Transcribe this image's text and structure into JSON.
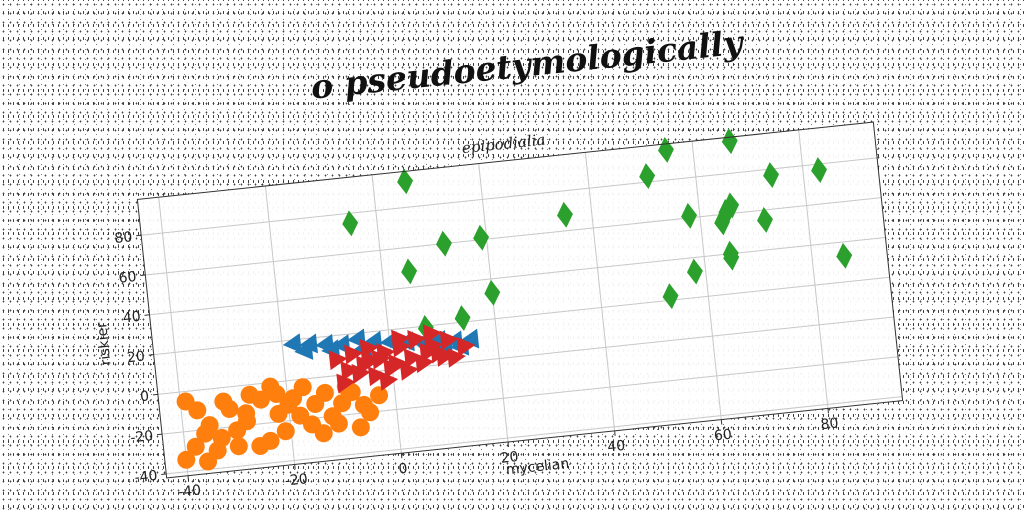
{
  "page_title": "o pseudoetymologically",
  "chart_data": {
    "type": "scatter",
    "title": "epipodialia",
    "xlabel": "mycelian",
    "ylabel": "riskier",
    "xlim": [
      -44,
      94
    ],
    "ylim": [
      -42,
      98
    ],
    "xticks": [
      -40,
      -20,
      0,
      20,
      40,
      60,
      80
    ],
    "yticks": [
      -40,
      -20,
      0,
      20,
      40,
      60,
      80
    ],
    "grid": true,
    "series": [
      {
        "color": "#1f77b4",
        "marker": "triangle-left",
        "points": [
          [
            -18,
            18
          ],
          [
            -15,
            17
          ],
          [
            -12,
            16
          ],
          [
            -9,
            15
          ],
          [
            -6,
            17
          ],
          [
            -3,
            15
          ],
          [
            0,
            14
          ],
          [
            3,
            13
          ],
          [
            6,
            12
          ],
          [
            9,
            12
          ],
          [
            12,
            11
          ],
          [
            15,
            11
          ],
          [
            13,
            8
          ],
          [
            10,
            9
          ],
          [
            7,
            10
          ],
          [
            -16,
            14
          ],
          [
            -11,
            13
          ],
          [
            -5,
            12
          ]
        ]
      },
      {
        "color": "#2ca02c",
        "marker": "diamond",
        "points": [
          [
            -5,
            75
          ],
          [
            6,
            93
          ],
          [
            5,
            48
          ],
          [
            12,
            60
          ],
          [
            19,
            61
          ],
          [
            20,
            33
          ],
          [
            14,
            22
          ],
          [
            7,
            19
          ],
          [
            35,
            68
          ],
          [
            51,
            83
          ],
          [
            55,
            95
          ],
          [
            58,
            61
          ],
          [
            58,
            33
          ],
          [
            53,
            22
          ],
          [
            65,
            61
          ],
          [
            64,
            56
          ],
          [
            66,
            64
          ],
          [
            65,
            40
          ],
          [
            67,
            96
          ],
          [
            72,
            55
          ],
          [
            74,
            77
          ],
          [
            65,
            38
          ],
          [
            83,
            77
          ],
          [
            86,
            33
          ]
        ]
      },
      {
        "color": "#ff7f0e",
        "marker": "circle",
        "points": [
          [
            -39,
            -5
          ],
          [
            -37,
            -10
          ],
          [
            -35,
            -18
          ],
          [
            -38,
            -28
          ],
          [
            -36,
            -36
          ],
          [
            -33,
            -25
          ],
          [
            -30,
            -22
          ],
          [
            -28,
            -14
          ],
          [
            -25,
            -8
          ],
          [
            -22,
            -6
          ],
          [
            -20,
            -12
          ],
          [
            -18,
            -18
          ],
          [
            -16,
            -23
          ],
          [
            -14,
            -28
          ],
          [
            -12,
            -20
          ],
          [
            -10,
            -14
          ],
          [
            -8,
            -9
          ],
          [
            -6,
            -16
          ],
          [
            -5,
            -20
          ],
          [
            -3,
            -12
          ],
          [
            -23,
            -2
          ],
          [
            -27,
            -5
          ],
          [
            -31,
            -11
          ],
          [
            -34,
            -31
          ],
          [
            -24,
            -29
          ],
          [
            -28,
            -18
          ],
          [
            -21,
            -25
          ],
          [
            -19,
            -9
          ],
          [
            -17,
            -4
          ],
          [
            -15,
            -13
          ],
          [
            -13,
            -8
          ],
          [
            -26,
            -31
          ],
          [
            -11,
            -24
          ],
          [
            -9,
            -6
          ],
          [
            -32,
            -7
          ],
          [
            -36,
            -22
          ],
          [
            -30,
            -30
          ],
          [
            -22,
            -16
          ],
          [
            -7,
            -27
          ],
          [
            -40,
            -34
          ]
        ]
      },
      {
        "color": "#d62728",
        "marker": "triangle-right",
        "points": [
          [
            -10,
            8
          ],
          [
            -7,
            10
          ],
          [
            -4,
            12
          ],
          [
            -1,
            9
          ],
          [
            2,
            11
          ],
          [
            5,
            14
          ],
          [
            8,
            10
          ],
          [
            11,
            12
          ],
          [
            14,
            8
          ],
          [
            -8,
            2
          ],
          [
            -5,
            4
          ],
          [
            -2,
            6
          ],
          [
            1,
            3
          ],
          [
            4,
            5
          ],
          [
            7,
            7
          ],
          [
            10,
            4
          ],
          [
            -6,
            0
          ],
          [
            -3,
            -2
          ],
          [
            0,
            1
          ],
          [
            3,
            -1
          ],
          [
            6,
            2
          ],
          [
            9,
            6
          ],
          [
            12,
            3
          ],
          [
            -9,
            -4
          ],
          [
            -4,
            6
          ],
          [
            2,
            15
          ],
          [
            8,
            16
          ],
          [
            -1,
            -5
          ]
        ]
      }
    ]
  }
}
